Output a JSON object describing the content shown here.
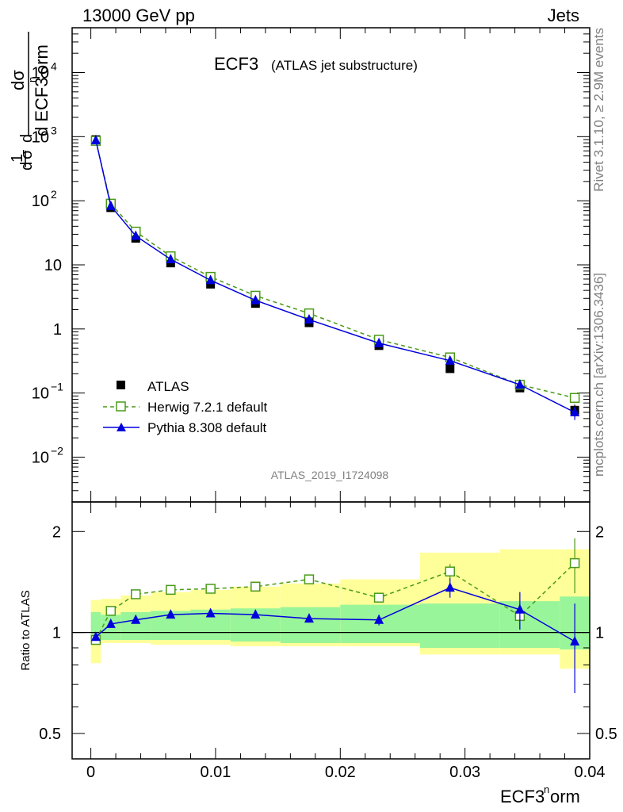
{
  "header": {
    "left": "13000 GeV pp",
    "right": "Jets",
    "side_top": "Rivet 3.1.10, ≥ 2.9M events",
    "side_bottom": "mcplots.cern.ch [arXiv:1306.3436]"
  },
  "main_title": {
    "name": "ECF3",
    "desc": "(ATLAS jet substructure)"
  },
  "analysis_id": "ATLAS_2019_I1724098",
  "colors": {
    "data": "#000000",
    "herwig": "#4a9a18",
    "pythia": "#0000dd",
    "band_inner": "#99f599",
    "band_outer": "#ffff99"
  },
  "chart_data": [
    {
      "type": "scatter",
      "panel": "main",
      "ylabel": "1/σ dσ/d ECF3norm",
      "yscale": "log",
      "ylim": [
        0.002,
        50000
      ],
      "xlim": [
        -0.0015,
        0.04
      ],
      "xticks": [
        "0",
        "0.01",
        "0.02",
        "0.03",
        "0.04"
      ],
      "legend_position": "bottom-left",
      "x": [
        0.0004,
        0.0016,
        0.0036,
        0.0064,
        0.0096,
        0.0132,
        0.0175,
        0.0231,
        0.0288,
        0.0344,
        0.0388
      ],
      "series": [
        {
          "name": "ATLAS",
          "marker": "square",
          "values": [
            900,
            78,
            26,
            10.7,
            5.0,
            2.5,
            1.25,
            0.55,
            0.24,
            0.12,
            0.054
          ],
          "err": [
            40,
            4,
            1.2,
            0.5,
            0.25,
            0.12,
            0.08,
            0.04,
            0.03,
            0.015,
            0.012
          ]
        },
        {
          "name": "Herwig 7.2.1 default",
          "marker": "open-square",
          "line": "dashed",
          "values": [
            860,
            90,
            33,
            13.6,
            6.5,
            3.3,
            1.75,
            0.68,
            0.36,
            0.135,
            0.084
          ],
          "err": [
            10,
            2,
            0.5,
            0.2,
            0.12,
            0.06,
            0.04,
            0.02,
            0.02,
            0.01,
            0.008
          ]
        },
        {
          "name": "Pythia 8.308 default",
          "marker": "triangle",
          "line": "solid",
          "values": [
            880,
            83,
            28.3,
            12.2,
            5.75,
            2.8,
            1.4,
            0.6,
            0.32,
            0.135,
            0.05
          ],
          "err": [
            10,
            2,
            0.5,
            0.2,
            0.12,
            0.06,
            0.04,
            0.02,
            0.02,
            0.01,
            0.012
          ]
        }
      ]
    },
    {
      "type": "scatter",
      "panel": "ratio",
      "ylabel": "Ratio to ATLAS",
      "xlabel": "ECF3norm",
      "yscale": "log",
      "ylim": [
        0.42,
        2.45
      ],
      "yticks": [
        "0.5",
        "1",
        "2"
      ],
      "xlim": [
        -0.0015,
        0.04
      ],
      "bins": [
        [
          0,
          0.0008
        ],
        [
          0.0008,
          0.0024
        ],
        [
          0.0024,
          0.0048
        ],
        [
          0.0048,
          0.008
        ],
        [
          0.008,
          0.0112
        ],
        [
          0.0112,
          0.0152
        ],
        [
          0.0152,
          0.02
        ],
        [
          0.02,
          0.0264
        ],
        [
          0.0264,
          0.0328
        ],
        [
          0.0328,
          0.0376
        ],
        [
          0.0376,
          0.04
        ]
      ],
      "band_inner": [
        [
          0.93,
          1.15
        ],
        [
          0.95,
          1.13
        ],
        [
          0.95,
          1.15
        ],
        [
          0.95,
          1.16
        ],
        [
          0.95,
          1.17
        ],
        [
          0.94,
          1.18
        ],
        [
          0.93,
          1.19
        ],
        [
          0.93,
          1.21
        ],
        [
          0.9,
          1.22
        ],
        [
          0.9,
          1.24
        ],
        [
          0.89,
          1.28
        ]
      ],
      "band_outer": [
        [
          0.81,
          1.25
        ],
        [
          0.93,
          1.26
        ],
        [
          0.93,
          1.29
        ],
        [
          0.92,
          1.32
        ],
        [
          0.92,
          1.34
        ],
        [
          0.91,
          1.37
        ],
        [
          0.91,
          1.4
        ],
        [
          0.91,
          1.44
        ],
        [
          0.86,
          1.73
        ],
        [
          0.86,
          1.77
        ],
        [
          0.78,
          1.77
        ]
      ],
      "x": [
        0.0004,
        0.0016,
        0.0036,
        0.0064,
        0.0096,
        0.0132,
        0.0175,
        0.0231,
        0.0288,
        0.0344,
        0.0388
      ],
      "series": [
        {
          "name": "Herwig 7.2.1 default",
          "marker": "open-square",
          "line": "dashed",
          "values": [
            0.95,
            1.16,
            1.3,
            1.34,
            1.35,
            1.37,
            1.44,
            1.27,
            1.52,
            1.12,
            1.61
          ],
          "err": [
            0.02,
            0.02,
            0.02,
            0.02,
            0.02,
            0.02,
            0.03,
            0.04,
            0.08,
            0.1,
            0.3
          ]
        },
        {
          "name": "Pythia 8.308 default",
          "marker": "triangle",
          "line": "solid",
          "values": [
            0.97,
            1.06,
            1.09,
            1.13,
            1.14,
            1.13,
            1.1,
            1.09,
            1.36,
            1.17,
            0.94
          ],
          "err": [
            0.02,
            0.02,
            0.02,
            0.02,
            0.02,
            0.02,
            0.03,
            0.04,
            0.09,
            0.15,
            0.28
          ]
        }
      ]
    }
  ]
}
